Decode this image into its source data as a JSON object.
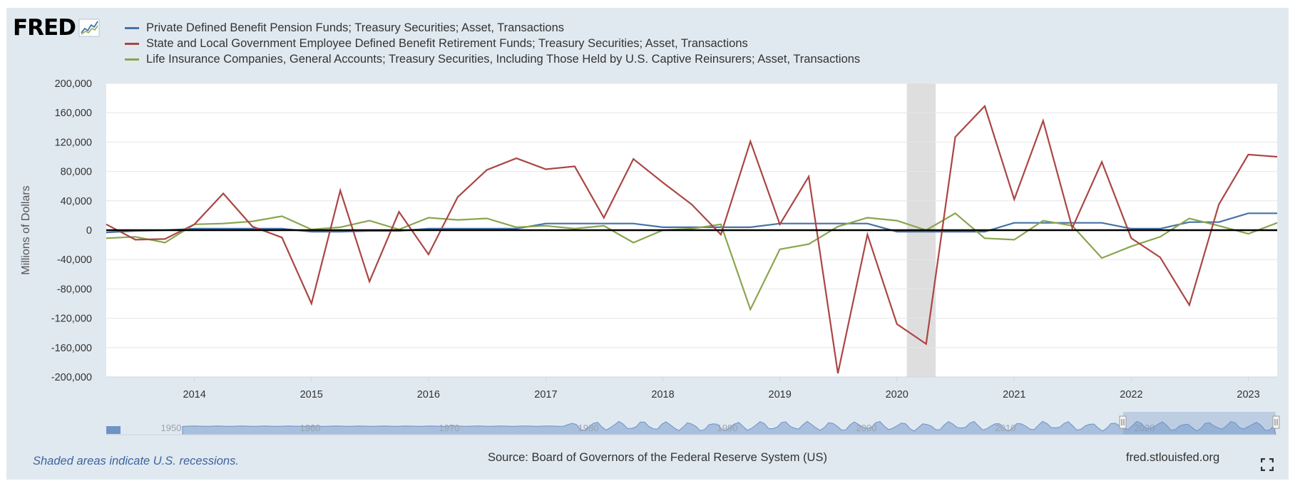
{
  "logo": {
    "text": "FRED",
    "icon": "fred-chart-logo-icon"
  },
  "colors": {
    "frame_bg": "#e1e9f0",
    "series_1": "#4572a7",
    "series_2": "#aa4643",
    "series_3": "#89a54e",
    "recession": "#dedede",
    "zero_line": "#000000"
  },
  "footer": {
    "recession_note": "Shaded areas indicate U.S. recessions.",
    "source": "Source: Board of Governors of the Federal Reserve System (US)",
    "site": "fred.stlouisfed.org",
    "fullscreen_icon": "fullscreen-icon"
  },
  "navigator": {
    "year_labels": [
      "1950",
      "1960",
      "1970",
      "1980",
      "1990",
      "2000",
      "2010",
      "2020"
    ],
    "selected_range": [
      "2013",
      "2023"
    ]
  },
  "chart_data": {
    "type": "line",
    "ylabel": "Millions of Dollars",
    "ylim": [
      -200000,
      200000
    ],
    "yticks": [
      200000,
      160000,
      120000,
      80000,
      40000,
      0,
      -40000,
      -80000,
      -120000,
      -160000,
      -200000
    ],
    "ytick_labels": [
      "200,000",
      "160,000",
      "120,000",
      "80,000",
      "40,000",
      "0",
      "-40,000",
      "-80,000",
      "-120,000",
      "-160,000",
      "-200,000"
    ],
    "xticks": [
      "2014",
      "2015",
      "2016",
      "2017",
      "2018",
      "2019",
      "2020",
      "2021",
      "2022",
      "2023"
    ],
    "x": [
      "2013-04-01",
      "2013-07-01",
      "2013-10-01",
      "2014-01-01",
      "2014-04-01",
      "2014-07-01",
      "2014-10-01",
      "2015-01-01",
      "2015-04-01",
      "2015-07-01",
      "2015-10-01",
      "2016-01-01",
      "2016-04-01",
      "2016-07-01",
      "2016-10-01",
      "2017-01-01",
      "2017-04-01",
      "2017-07-01",
      "2017-10-01",
      "2018-01-01",
      "2018-04-01",
      "2018-07-01",
      "2018-10-01",
      "2019-01-01",
      "2019-04-01",
      "2019-07-01",
      "2019-10-01",
      "2020-01-01",
      "2020-04-01",
      "2020-07-01",
      "2020-10-01",
      "2021-01-01",
      "2021-04-01",
      "2021-07-01",
      "2021-10-01",
      "2022-01-01",
      "2022-04-01",
      "2022-07-01",
      "2022-10-01",
      "2023-01-01",
      "2023-04-01"
    ],
    "recessions": [
      [
        "2020-02-01",
        "2020-05-01"
      ]
    ],
    "grid": true,
    "legend_position": "top",
    "series": [
      {
        "name": "Private Defined Benefit Pension Funds; Treasury Securities; Asset, Transactions",
        "values": [
          -3000,
          -1000,
          0,
          2000,
          2000,
          2000,
          2000,
          -2000,
          -2000,
          -1000,
          -1000,
          2000,
          2000,
          2000,
          2000,
          9000,
          9000,
          9000,
          9000,
          4000,
          4000,
          4000,
          4000,
          9000,
          9000,
          9000,
          9000,
          -2000,
          -2000,
          -2000,
          -2000,
          10000,
          10000,
          10000,
          10000,
          2000,
          2000,
          11000,
          11000,
          23000,
          23000
        ]
      },
      {
        "name": "State and Local Government Employee Defined Benefit Retirement Funds; Treasury Securities; Asset, Transactions",
        "values": [
          8000,
          -13000,
          -12000,
          8000,
          50000,
          5000,
          -10000,
          -100000,
          54000,
          -70000,
          25000,
          -33000,
          45000,
          82000,
          98000,
          83000,
          87000,
          17000,
          97000,
          65000,
          35000,
          -6000,
          121000,
          8000,
          73000,
          -195000,
          -6000,
          -128000,
          -155000,
          127000,
          169000,
          42000,
          149000,
          3000,
          93000,
          -11000,
          -37000,
          -102000,
          35000,
          103000,
          100000
        ]
      },
      {
        "name": "Life Insurance Companies, General Accounts; Treasury Securities, Including Those Held by U.S. Captive Reinsurers; Asset, Transactions",
        "values": [
          -11000,
          -9000,
          -17000,
          8000,
          9000,
          12000,
          19000,
          1000,
          4000,
          13000,
          1000,
          17000,
          14000,
          16000,
          4000,
          6000,
          2000,
          6000,
          -17000,
          0,
          2000,
          8000,
          -108000,
          -26000,
          -19000,
          5000,
          17000,
          13000,
          0,
          23000,
          -11000,
          -13000,
          13000,
          6000,
          -38000,
          -22000,
          -9000,
          16000,
          6000,
          -5000,
          10000
        ]
      }
    ]
  }
}
